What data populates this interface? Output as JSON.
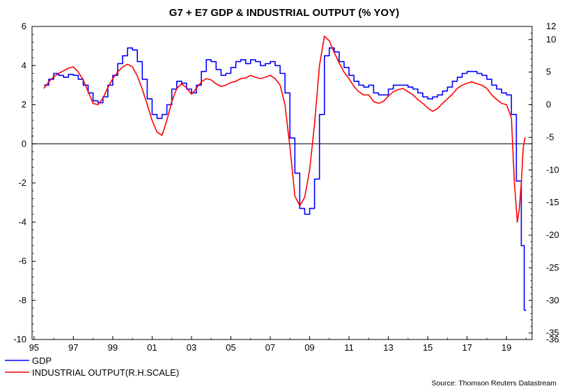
{
  "chart_data": {
    "type": "line",
    "title": "G7 + E7 GDP & INDUSTRIAL OUTPUT (% YOY)",
    "source": "Source: Thomson Reuters Datastream",
    "x_axis": {
      "tick_labels": [
        "95",
        "97",
        "99",
        "01",
        "03",
        "05",
        "07",
        "09",
        "11",
        "13",
        "15",
        "17",
        "19"
      ],
      "range": [
        1994.9,
        2020.3
      ]
    },
    "y_left": {
      "ticks": [
        6,
        4,
        2,
        0,
        -2,
        -4,
        -6,
        -8,
        -10
      ],
      "tick_labels": [
        "6",
        "4",
        "2",
        "0",
        "-2",
        "-4",
        "-6",
        "-8",
        "-10"
      ],
      "range": [
        -10,
        6
      ]
    },
    "y_right": {
      "ticks": [
        12,
        10,
        5,
        0,
        -5,
        -10,
        -15,
        -20,
        -25,
        -30,
        -35,
        -36
      ],
      "tick_labels": [
        "12",
        "10",
        "5",
        "0",
        "-5",
        "-10",
        "-15",
        "-20",
        "-25",
        "-30",
        "-35",
        "-36"
      ],
      "range": [
        -36,
        12
      ]
    },
    "zero_line": 0,
    "series": [
      {
        "name": "GDP",
        "color": "#0000ff",
        "axis": "left",
        "step": true,
        "points": [
          [
            1995.5,
            3.0
          ],
          [
            1995.75,
            3.3
          ],
          [
            1996.0,
            3.6
          ],
          [
            1996.25,
            3.5
          ],
          [
            1996.5,
            3.4
          ],
          [
            1996.75,
            3.55
          ],
          [
            1997.0,
            3.5
          ],
          [
            1997.25,
            3.3
          ],
          [
            1997.5,
            3.0
          ],
          [
            1997.75,
            2.6
          ],
          [
            1998.0,
            2.2
          ],
          [
            1998.25,
            2.1
          ],
          [
            1998.5,
            2.4
          ],
          [
            1998.75,
            3.0
          ],
          [
            1999.0,
            3.5
          ],
          [
            1999.25,
            4.1
          ],
          [
            1999.5,
            4.5
          ],
          [
            1999.75,
            4.9
          ],
          [
            2000.0,
            4.8
          ],
          [
            2000.25,
            4.2
          ],
          [
            2000.5,
            3.3
          ],
          [
            2000.75,
            2.3
          ],
          [
            2001.0,
            1.5
          ],
          [
            2001.25,
            1.3
          ],
          [
            2001.5,
            1.5
          ],
          [
            2001.75,
            2.0
          ],
          [
            2002.0,
            2.8
          ],
          [
            2002.25,
            3.2
          ],
          [
            2002.5,
            3.1
          ],
          [
            2002.75,
            2.8
          ],
          [
            2003.0,
            2.6
          ],
          [
            2003.25,
            3.0
          ],
          [
            2003.5,
            3.7
          ],
          [
            2003.75,
            4.3
          ],
          [
            2004.0,
            4.2
          ],
          [
            2004.25,
            3.8
          ],
          [
            2004.5,
            3.5
          ],
          [
            2004.75,
            3.6
          ],
          [
            2005.0,
            3.9
          ],
          [
            2005.25,
            4.2
          ],
          [
            2005.5,
            4.3
          ],
          [
            2005.75,
            4.1
          ],
          [
            2006.0,
            4.3
          ],
          [
            2006.25,
            4.2
          ],
          [
            2006.5,
            4.0
          ],
          [
            2006.75,
            4.1
          ],
          [
            2007.0,
            4.2
          ],
          [
            2007.25,
            4.0
          ],
          [
            2007.5,
            3.6
          ],
          [
            2007.75,
            2.6
          ],
          [
            2008.0,
            0.3
          ],
          [
            2008.25,
            -1.5
          ],
          [
            2008.5,
            -3.3
          ],
          [
            2008.75,
            -3.6
          ],
          [
            2009.0,
            -3.3
          ],
          [
            2009.25,
            -1.8
          ],
          [
            2009.5,
            1.5
          ],
          [
            2009.75,
            4.5
          ],
          [
            2010.0,
            4.9
          ],
          [
            2010.25,
            4.7
          ],
          [
            2010.5,
            4.2
          ],
          [
            2010.75,
            3.9
          ],
          [
            2011.0,
            3.5
          ],
          [
            2011.25,
            3.2
          ],
          [
            2011.5,
            3.0
          ],
          [
            2011.75,
            2.9
          ],
          [
            2012.0,
            3.0
          ],
          [
            2012.25,
            2.6
          ],
          [
            2012.5,
            2.5
          ],
          [
            2012.75,
            2.5
          ],
          [
            2013.0,
            2.8
          ],
          [
            2013.25,
            3.0
          ],
          [
            2013.5,
            3.0
          ],
          [
            2013.75,
            3.0
          ],
          [
            2014.0,
            2.9
          ],
          [
            2014.25,
            2.8
          ],
          [
            2014.5,
            2.6
          ],
          [
            2014.75,
            2.4
          ],
          [
            2015.0,
            2.3
          ],
          [
            2015.25,
            2.4
          ],
          [
            2015.5,
            2.5
          ],
          [
            2015.75,
            2.7
          ],
          [
            2016.0,
            2.9
          ],
          [
            2016.25,
            3.2
          ],
          [
            2016.5,
            3.4
          ],
          [
            2016.75,
            3.6
          ],
          [
            2017.0,
            3.7
          ],
          [
            2017.25,
            3.7
          ],
          [
            2017.5,
            3.6
          ],
          [
            2017.75,
            3.5
          ],
          [
            2018.0,
            3.3
          ],
          [
            2018.25,
            3.0
          ],
          [
            2018.5,
            2.8
          ],
          [
            2018.75,
            2.6
          ],
          [
            2019.0,
            2.5
          ],
          [
            2019.25,
            1.5
          ],
          [
            2019.5,
            -1.9
          ],
          [
            2019.75,
            -5.2
          ],
          [
            2019.9,
            -8.5
          ],
          [
            2020.0,
            -8.5
          ]
        ]
      },
      {
        "name": "INDUSTRIAL OUTPUT(R.H.SCALE)",
        "color": "#ff0000",
        "axis": "right",
        "step": false,
        "points": [
          [
            1995.5,
            2.5
          ],
          [
            1995.75,
            3.5
          ],
          [
            1996.0,
            4.3
          ],
          [
            1996.25,
            4.8
          ],
          [
            1996.5,
            5.2
          ],
          [
            1996.75,
            5.6
          ],
          [
            1997.0,
            5.8
          ],
          [
            1997.25,
            5.0
          ],
          [
            1997.5,
            3.8
          ],
          [
            1997.75,
            2.0
          ],
          [
            1998.0,
            0.2
          ],
          [
            1998.25,
            0.0
          ],
          [
            1998.5,
            1.0
          ],
          [
            1998.75,
            2.6
          ],
          [
            1999.0,
            4.0
          ],
          [
            1999.25,
            5.0
          ],
          [
            1999.5,
            5.8
          ],
          [
            1999.75,
            6.2
          ],
          [
            2000.0,
            5.8
          ],
          [
            2000.25,
            4.4
          ],
          [
            2000.5,
            2.4
          ],
          [
            2000.75,
            0.0
          ],
          [
            2001.0,
            -2.4
          ],
          [
            2001.25,
            -4.2
          ],
          [
            2001.5,
            -4.7
          ],
          [
            2001.75,
            -2.4
          ],
          [
            2002.0,
            0.5
          ],
          [
            2002.25,
            2.5
          ],
          [
            2002.5,
            3.2
          ],
          [
            2002.75,
            2.6
          ],
          [
            2003.0,
            1.6
          ],
          [
            2003.25,
            2.5
          ],
          [
            2003.5,
            3.5
          ],
          [
            2003.75,
            4.0
          ],
          [
            2004.0,
            3.8
          ],
          [
            2004.25,
            3.2
          ],
          [
            2004.5,
            2.8
          ],
          [
            2004.75,
            3.0
          ],
          [
            2005.0,
            3.4
          ],
          [
            2005.25,
            3.6
          ],
          [
            2005.5,
            4.0
          ],
          [
            2005.75,
            4.1
          ],
          [
            2006.0,
            4.5
          ],
          [
            2006.25,
            4.2
          ],
          [
            2006.5,
            4.0
          ],
          [
            2006.75,
            4.2
          ],
          [
            2007.0,
            4.5
          ],
          [
            2007.25,
            4.0
          ],
          [
            2007.5,
            3.0
          ],
          [
            2007.75,
            0.0
          ],
          [
            2008.0,
            -6.5
          ],
          [
            2008.25,
            -14.0
          ],
          [
            2008.5,
            -15.5
          ],
          [
            2008.75,
            -14.2
          ],
          [
            2009.0,
            -10.0
          ],
          [
            2009.25,
            -3.0
          ],
          [
            2009.5,
            6.0
          ],
          [
            2009.75,
            10.5
          ],
          [
            2010.0,
            9.8
          ],
          [
            2010.25,
            8.0
          ],
          [
            2010.5,
            6.4
          ],
          [
            2010.75,
            5.0
          ],
          [
            2011.0,
            4.0
          ],
          [
            2011.25,
            2.8
          ],
          [
            2011.5,
            2.0
          ],
          [
            2011.75,
            1.5
          ],
          [
            2012.0,
            1.5
          ],
          [
            2012.25,
            0.5
          ],
          [
            2012.5,
            0.2
          ],
          [
            2012.75,
            0.5
          ],
          [
            2013.0,
            1.3
          ],
          [
            2013.25,
            2.0
          ],
          [
            2013.5,
            2.3
          ],
          [
            2013.75,
            2.5
          ],
          [
            2014.0,
            2.0
          ],
          [
            2014.25,
            1.5
          ],
          [
            2014.5,
            0.8
          ],
          [
            2014.75,
            0.2
          ],
          [
            2015.0,
            -0.5
          ],
          [
            2015.25,
            -1.0
          ],
          [
            2015.5,
            -0.6
          ],
          [
            2015.75,
            0.2
          ],
          [
            2016.0,
            0.9
          ],
          [
            2016.25,
            1.6
          ],
          [
            2016.5,
            2.5
          ],
          [
            2016.75,
            3.0
          ],
          [
            2017.0,
            3.3
          ],
          [
            2017.25,
            3.5
          ],
          [
            2017.5,
            3.2
          ],
          [
            2017.75,
            3.0
          ],
          [
            2018.0,
            2.5
          ],
          [
            2018.25,
            1.5
          ],
          [
            2018.5,
            0.8
          ],
          [
            2018.75,
            0.2
          ],
          [
            2019.0,
            0.0
          ],
          [
            2019.25,
            -2.0
          ],
          [
            2019.4,
            -12.0
          ],
          [
            2019.55,
            -18.0
          ],
          [
            2019.65,
            -16.0
          ],
          [
            2019.75,
            -12.0
          ],
          [
            2019.85,
            -6.5
          ],
          [
            2019.95,
            -5.0
          ]
        ]
      }
    ]
  }
}
